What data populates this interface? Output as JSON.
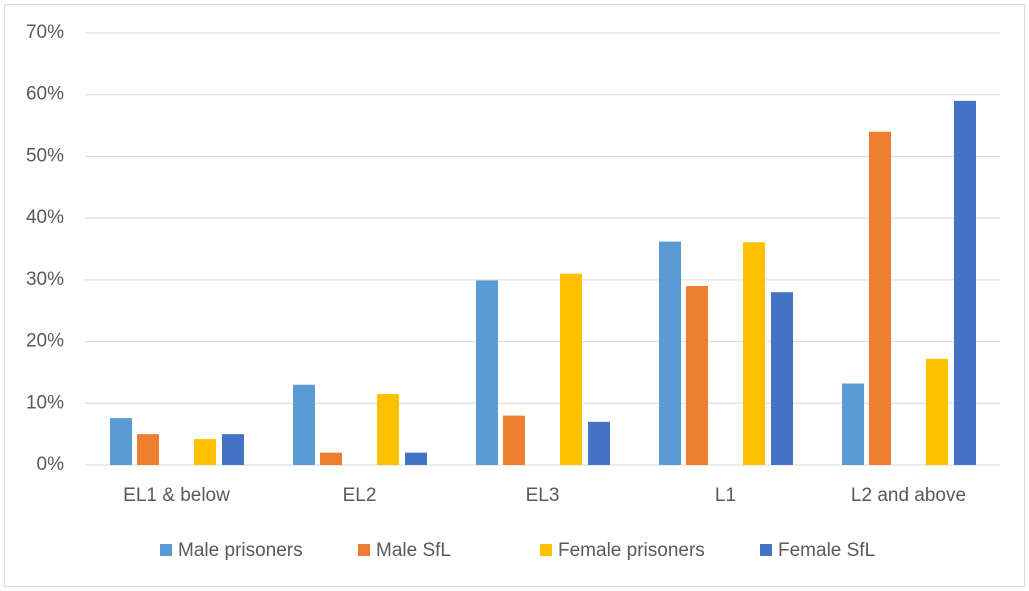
{
  "chart_data": {
    "type": "bar",
    "categories": [
      "EL1 & below",
      "EL2",
      "EL3",
      "L1",
      "L2 and above"
    ],
    "series": [
      {
        "name": "Male prisoners",
        "color": "#5b9bd5",
        "values": [
          7.6,
          13,
          29.9,
          36.2,
          13.2
        ]
      },
      {
        "name": "Male SfL",
        "color": "#ed7d31",
        "values": [
          5,
          2,
          8,
          29,
          54
        ]
      },
      {
        "name": "Female prisoners",
        "color": "#ffc000",
        "values": [
          4.2,
          11.5,
          31,
          36.1,
          17.2
        ]
      },
      {
        "name": "Female SfL",
        "color": "#4472c4",
        "values": [
          5,
          2,
          7,
          28,
          59
        ]
      }
    ],
    "ylim": [
      0,
      70
    ],
    "yticks": [
      {
        "value": 0,
        "label": "0%"
      },
      {
        "value": 10,
        "label": "10%"
      },
      {
        "value": 20,
        "label": "20%"
      },
      {
        "value": 30,
        "label": "30%"
      },
      {
        "value": 40,
        "label": "40%"
      },
      {
        "value": 50,
        "label": "50%"
      },
      {
        "value": 60,
        "label": "60%"
      },
      {
        "value": 70,
        "label": "70%"
      }
    ],
    "grid": true,
    "legend": "bottom"
  }
}
